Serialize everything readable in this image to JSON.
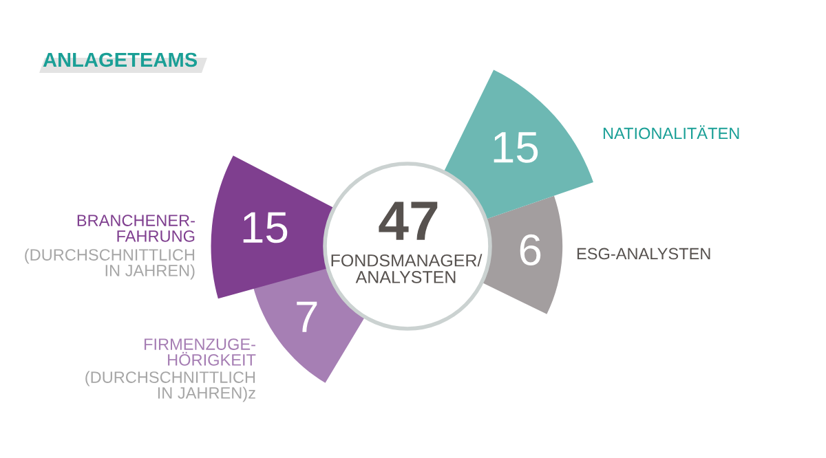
{
  "chart_data": [
    {
      "type": "other",
      "title": "ANLAGETEAMS",
      "categories": [
        "NATIONALITÄTEN",
        "ESG-ANALYSTEN",
        "FIRMENZUGE-\nHÖRIGKEIT",
        "BRANCHENER-\nFAHRUNG"
      ],
      "values": [
        15,
        6,
        7,
        15
      ],
      "colors": [
        "#6db8b3",
        "#a39e9f",
        "#a67fb4",
        "#7f3f8f"
      ],
      "data_labels": true,
      "annotations": [
        "(DURCHSCHNITTLICH\nIN JAHREN)",
        "(DURCHSCHNITTLICH\nIN JAHREN)z"
      ]
    },
    {
      "type": "other",
      "categories": [
        "FONDSMANAGER/\nANALYSTEN"
      ],
      "values": [
        47
      ],
      "colors": [
        "#ffffff"
      ],
      "data_labels": true
    }
  ]
}
